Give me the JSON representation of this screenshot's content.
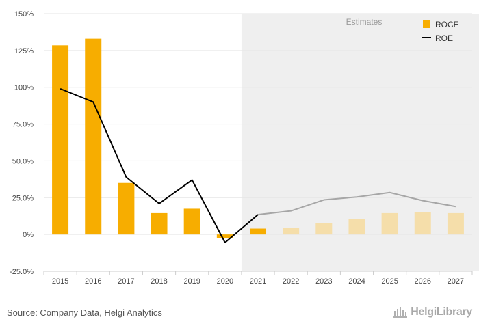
{
  "chart_data": {
    "type": "bar",
    "categories": [
      "2015",
      "2016",
      "2017",
      "2018",
      "2019",
      "2020",
      "2021",
      "2022",
      "2023",
      "2024",
      "2025",
      "2026",
      "2027"
    ],
    "series": [
      {
        "name": "ROCE",
        "kind": "bar",
        "values": [
          128.5,
          133,
          35,
          14.5,
          17.5,
          -2.5,
          4,
          4.5,
          7.5,
          10.5,
          14.5,
          15,
          14.5
        ]
      },
      {
        "name": "ROE",
        "kind": "line",
        "values": [
          99,
          90,
          39,
          21,
          37,
          -5.5,
          13.5,
          16,
          23.5,
          25.5,
          28.5,
          23,
          19
        ]
      }
    ],
    "ylim": [
      -25,
      150
    ],
    "yticks": [
      "-25.0%",
      "0%",
      "25.0%",
      "50.0%",
      "75.0%",
      "100%",
      "125%",
      "150%"
    ],
    "ytick_values": [
      -25,
      0,
      25,
      50,
      75,
      100,
      125,
      150
    ],
    "estimates_from": "2021",
    "estimates_label": "Estimates",
    "grid": true,
    "legend_position": "top-right",
    "colors": {
      "bar_actual": "#f7ad00",
      "bar_estimate": "#f5deaa",
      "line_actual": "#000000",
      "line_estimate": "#a6a6a6",
      "estimate_band": "#efefef",
      "grid": "#e6e6e6",
      "axis": "#cccccc"
    }
  },
  "footer": {
    "source": "Source: Company Data, Helgi Analytics",
    "brand": "HelgiLibrary"
  }
}
